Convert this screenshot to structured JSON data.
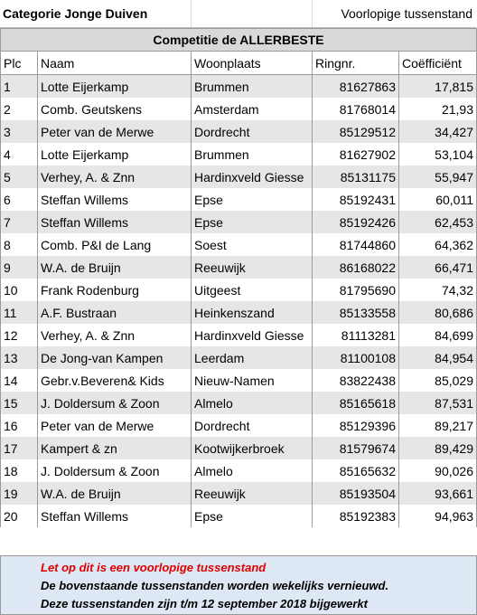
{
  "header": {
    "category": "Categorie Jonge Duiven",
    "status": "Voorlopige tussenstand"
  },
  "competition": {
    "title": "Competitie de ALLERBESTE"
  },
  "table": {
    "columns": [
      "Plc",
      "Naam",
      "Woonplaats",
      "Ringnr.",
      "Coëfficiënt"
    ],
    "rows": [
      [
        "1",
        "Lotte Eijerkamp",
        "Brummen",
        "81627863",
        "17,815"
      ],
      [
        "2",
        "Comb. Geutskens",
        "Amsterdam",
        "81768014",
        "21,93"
      ],
      [
        "3",
        "Peter van de Merwe",
        "Dordrecht",
        "85129512",
        "34,427"
      ],
      [
        "4",
        "Lotte Eijerkamp",
        "Brummen",
        "81627902",
        "53,104"
      ],
      [
        "5",
        "Verhey, A. & Znn",
        "Hardinxveld Giesse",
        "85131175",
        "55,947"
      ],
      [
        "6",
        "Steffan Willems",
        "Epse",
        "85192431",
        "60,011"
      ],
      [
        "7",
        "Steffan Willems",
        "Epse",
        "85192426",
        "62,453"
      ],
      [
        "8",
        "Comb. P&I de Lang",
        "Soest",
        "81744860",
        "64,362"
      ],
      [
        "9",
        "W.A. de Bruijn",
        "Reeuwijk",
        "86168022",
        "66,471"
      ],
      [
        "10",
        "Frank Rodenburg",
        "Uitgeest",
        "81795690",
        "74,32"
      ],
      [
        "11",
        "A.F. Bustraan",
        "Heinkenszand",
        "85133558",
        "80,686"
      ],
      [
        "12",
        "Verhey, A. & Znn",
        "Hardinxveld Giesse",
        "81113281",
        "84,699"
      ],
      [
        "13",
        "De Jong-van Kampen",
        "Leerdam",
        "81100108",
        "84,954"
      ],
      [
        "14",
        "Gebr.v.Beveren& Kids",
        "Nieuw-Namen",
        "83822438",
        "85,029"
      ],
      [
        "15",
        "J. Doldersum & Zoon",
        "Almelo",
        "85165618",
        "87,531"
      ],
      [
        "16",
        "Peter van de Merwe",
        "Dordrecht",
        "85129396",
        "89,217"
      ],
      [
        "17",
        "Kampert & zn",
        "Kootwijkerbroek",
        "81579674",
        "89,429"
      ],
      [
        "18",
        "J. Doldersum & Zoon",
        "Almelo",
        "85165632",
        "90,026"
      ],
      [
        "19",
        "W.A. de Bruijn",
        "Reeuwijk",
        "85193504",
        "93,661"
      ],
      [
        "20",
        "Steffan Willems",
        "Epse",
        "85192383",
        "94,963"
      ]
    ]
  },
  "notes": {
    "warning": "Let op dit is een voorlopige tussenstand",
    "weekly": "De bovenstaande tussenstanden worden wekelijks vernieuwd.",
    "updated": "Deze tussenstanden zijn t/m 12 september 2018 bijgewerkt"
  },
  "colors": {
    "header_fill": "#d9d9d9",
    "stripe_fill": "#e6e6e6",
    "notes_fill": "#dde8f4",
    "warning_text": "#e00000"
  }
}
